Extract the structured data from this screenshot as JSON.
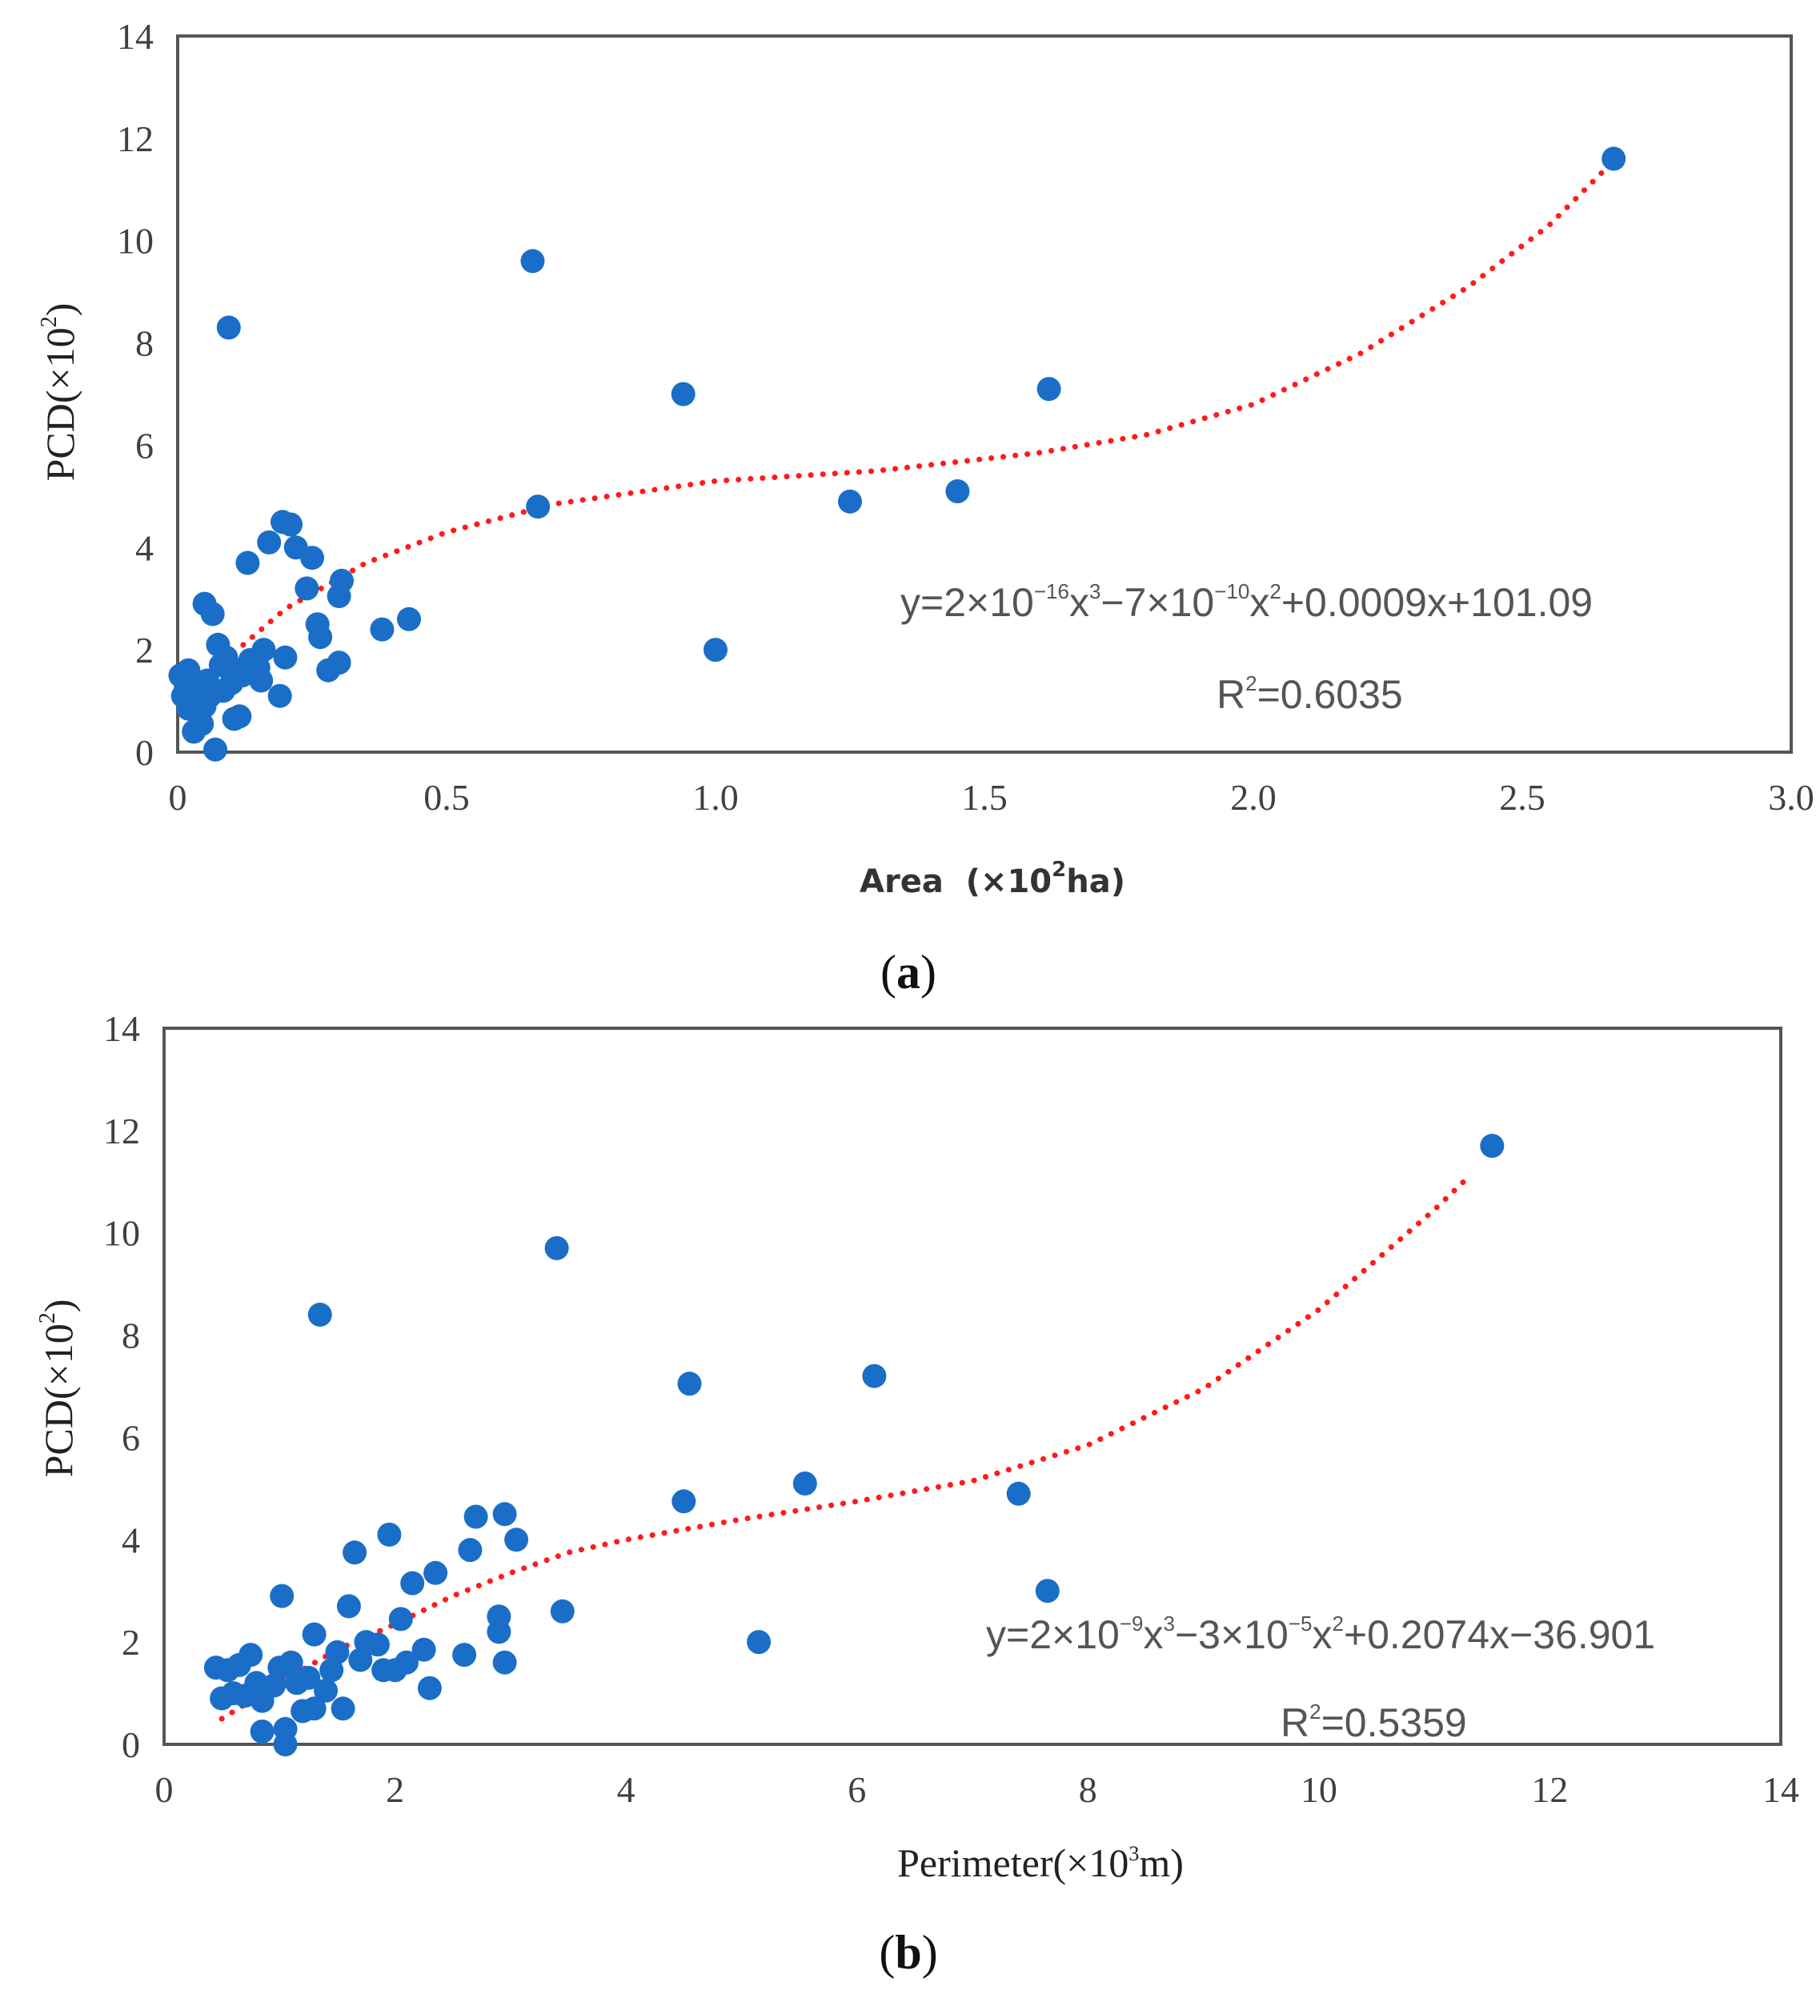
{
  "chart_data": [
    {
      "id": "a",
      "type": "scatter",
      "caption_letter": "a",
      "xlabel": {
        "main": "Area  (×10",
        "exp": "2",
        "tail": "ha)"
      },
      "ylabel": {
        "main": "PCD(×10",
        "exp": "2",
        "tail": ")"
      },
      "xlim": [
        0,
        3.0
      ],
      "ylim": [
        0,
        14
      ],
      "xticks": [
        0,
        0.5,
        1.0,
        1.5,
        2.0,
        2.5,
        3.0
      ],
      "xtick_labels": [
        "0",
        "0.5",
        "1.0",
        "1.5",
        "2.0",
        "2.5",
        "3.0"
      ],
      "yticks": [
        0,
        2,
        4,
        6,
        8,
        10,
        12,
        14
      ],
      "ytick_labels": [
        "0",
        "2",
        "4",
        "6",
        "8",
        "10",
        "12",
        "14"
      ],
      "equation": [
        {
          "t": "y=2×10"
        },
        {
          "t": "−16",
          "sup": true
        },
        {
          "t": "x"
        },
        {
          "t": "3",
          "sup": true
        },
        {
          "t": "−7×10"
        },
        {
          "t": "−10",
          "sup": true
        },
        {
          "t": "x"
        },
        {
          "t": "2",
          "sup": true
        },
        {
          "t": "+0.0009x+101.09"
        }
      ],
      "r2": {
        "main": "R",
        "exp": "2",
        "tail": "=0.6035"
      },
      "trend": {
        "points": [
          [
            0,
            1.05
          ],
          [
            0.1,
            1.9
          ],
          [
            0.2,
            2.8
          ],
          [
            0.35,
            3.7
          ],
          [
            0.5,
            4.3
          ],
          [
            0.7,
            4.85
          ],
          [
            1.0,
            5.3
          ],
          [
            1.3,
            5.5
          ],
          [
            1.6,
            5.85
          ],
          [
            1.8,
            6.2
          ],
          [
            2.0,
            6.8
          ],
          [
            2.2,
            7.8
          ],
          [
            2.4,
            9.1
          ],
          [
            2.55,
            10.3
          ],
          [
            2.65,
            11.35
          ]
        ],
        "color": "#ff1a1a"
      },
      "points": [
        [
          0.005,
          1.5
        ],
        [
          0.01,
          1.1
        ],
        [
          0.015,
          1.25
        ],
        [
          0.02,
          0.85
        ],
        [
          0.02,
          1.6
        ],
        [
          0.025,
          1.45
        ],
        [
          0.03,
          1.2
        ],
        [
          0.03,
          0.4
        ],
        [
          0.035,
          1.0
        ],
        [
          0.04,
          0.7
        ],
        [
          0.04,
          1.3
        ],
        [
          0.045,
          0.55
        ],
        [
          0.05,
          0.9
        ],
        [
          0.05,
          2.9
        ],
        [
          0.055,
          1.4
        ],
        [
          0.06,
          1.1
        ],
        [
          0.065,
          2.7
        ],
        [
          0.07,
          0.05
        ],
        [
          0.075,
          2.1
        ],
        [
          0.08,
          1.7
        ],
        [
          0.085,
          1.2
        ],
        [
          0.09,
          1.85
        ],
        [
          0.095,
          8.3
        ],
        [
          0.1,
          1.35
        ],
        [
          0.105,
          0.65
        ],
        [
          0.11,
          1.6
        ],
        [
          0.115,
          0.7
        ],
        [
          0.12,
          1.5
        ],
        [
          0.13,
          3.7
        ],
        [
          0.135,
          1.8
        ],
        [
          0.14,
          1.55
        ],
        [
          0.15,
          1.65
        ],
        [
          0.155,
          1.4
        ],
        [
          0.16,
          2.0
        ],
        [
          0.17,
          4.1
        ],
        [
          0.19,
          1.1
        ],
        [
          0.195,
          4.5
        ],
        [
          0.2,
          1.85
        ],
        [
          0.21,
          4.45
        ],
        [
          0.22,
          4.0
        ],
        [
          0.24,
          3.2
        ],
        [
          0.25,
          3.8
        ],
        [
          0.26,
          2.5
        ],
        [
          0.265,
          2.25
        ],
        [
          0.28,
          1.6
        ],
        [
          0.3,
          1.75
        ],
        [
          0.3,
          3.05
        ],
        [
          0.305,
          3.35
        ],
        [
          0.38,
          2.4
        ],
        [
          0.43,
          2.6
        ],
        [
          0.66,
          9.6
        ],
        [
          0.67,
          4.8
        ],
        [
          0.94,
          7.0
        ],
        [
          1.0,
          2.0
        ],
        [
          1.25,
          4.9
        ],
        [
          1.45,
          5.1
        ],
        [
          1.62,
          7.1
        ],
        [
          2.67,
          11.6
        ]
      ],
      "marker_color": "#1a6ec8"
    },
    {
      "id": "b",
      "type": "scatter",
      "caption_letter": "b",
      "xlabel": {
        "main": "Perimeter(×10",
        "exp": "3",
        "tail": "m)"
      },
      "ylabel": {
        "main": "PCD(×10",
        "exp": "2",
        "tail": ")"
      },
      "xlim": [
        0,
        14
      ],
      "ylim": [
        0,
        14
      ],
      "xticks": [
        0,
        2,
        4,
        6,
        8,
        10,
        12,
        14
      ],
      "xtick_labels": [
        "0",
        "2",
        "4",
        "6",
        "8",
        "10",
        "12",
        "14"
      ],
      "yticks": [
        0,
        2,
        4,
        6,
        8,
        10,
        12,
        14
      ],
      "ytick_labels": [
        "0",
        "2",
        "4",
        "6",
        "8",
        "10",
        "12",
        "14"
      ],
      "equation": [
        {
          "t": "y=2×10"
        },
        {
          "t": "−9",
          "sup": true
        },
        {
          "t": "x"
        },
        {
          "t": "3",
          "sup": true
        },
        {
          "t": "−3×10"
        },
        {
          "t": "−5",
          "sup": true
        },
        {
          "t": "x"
        },
        {
          "t": "2",
          "sup": true
        },
        {
          "t": "+0.2074x−36.901"
        }
      ],
      "r2": {
        "main": "R",
        "exp": "2",
        "tail": "=0.5359"
      },
      "trend": {
        "points": [
          [
            0.5,
            0.5
          ],
          [
            1.0,
            1.2
          ],
          [
            1.5,
            1.85
          ],
          [
            2.0,
            2.35
          ],
          [
            2.5,
            2.9
          ],
          [
            3.0,
            3.35
          ],
          [
            3.5,
            3.75
          ],
          [
            4.0,
            4.0
          ],
          [
            5.0,
            4.4
          ],
          [
            6.0,
            4.75
          ],
          [
            7.0,
            5.15
          ],
          [
            8.0,
            5.85
          ],
          [
            9.0,
            6.95
          ],
          [
            10.0,
            8.5
          ],
          [
            11.0,
            10.45
          ],
          [
            11.3,
            11.1
          ]
        ],
        "color": "#ff1a1a"
      },
      "points": [
        [
          0.45,
          1.5
        ],
        [
          0.5,
          0.9
        ],
        [
          0.55,
          1.45
        ],
        [
          0.6,
          1.0
        ],
        [
          0.65,
          1.55
        ],
        [
          0.7,
          0.95
        ],
        [
          0.75,
          1.75
        ],
        [
          0.8,
          1.2
        ],
        [
          0.85,
          0.85
        ],
        [
          0.85,
          0.25
        ],
        [
          0.95,
          1.15
        ],
        [
          1.0,
          1.5
        ],
        [
          1.02,
          2.9
        ],
        [
          1.05,
          0.3
        ],
        [
          1.05,
          0.0
        ],
        [
          1.1,
          1.6
        ],
        [
          1.15,
          1.2
        ],
        [
          1.2,
          0.65
        ],
        [
          1.25,
          1.3
        ],
        [
          1.3,
          0.7
        ],
        [
          1.3,
          2.15
        ],
        [
          1.35,
          8.4
        ],
        [
          1.4,
          1.05
        ],
        [
          1.45,
          1.45
        ],
        [
          1.5,
          1.8
        ],
        [
          1.55,
          0.7
        ],
        [
          1.6,
          2.7
        ],
        [
          1.65,
          3.75
        ],
        [
          1.7,
          1.65
        ],
        [
          1.75,
          2.0
        ],
        [
          1.85,
          1.95
        ],
        [
          1.9,
          1.45
        ],
        [
          1.95,
          4.1
        ],
        [
          2.0,
          1.45
        ],
        [
          2.05,
          2.45
        ],
        [
          2.1,
          1.6
        ],
        [
          2.15,
          3.15
        ],
        [
          2.25,
          1.85
        ],
        [
          2.3,
          1.1
        ],
        [
          2.35,
          3.35
        ],
        [
          2.6,
          1.75
        ],
        [
          2.65,
          3.8
        ],
        [
          2.7,
          4.45
        ],
        [
          2.9,
          2.5
        ],
        [
          2.9,
          2.2
        ],
        [
          2.95,
          4.5
        ],
        [
          2.95,
          1.6
        ],
        [
          3.05,
          4.0
        ],
        [
          3.4,
          9.7
        ],
        [
          3.45,
          2.6
        ],
        [
          4.5,
          4.75
        ],
        [
          4.55,
          7.05
        ],
        [
          5.15,
          2.0
        ],
        [
          5.55,
          5.1
        ],
        [
          6.15,
          7.2
        ],
        [
          7.4,
          4.9
        ],
        [
          7.65,
          3.0
        ],
        [
          11.5,
          11.7
        ]
      ],
      "marker_color": "#1a6ec8"
    }
  ]
}
